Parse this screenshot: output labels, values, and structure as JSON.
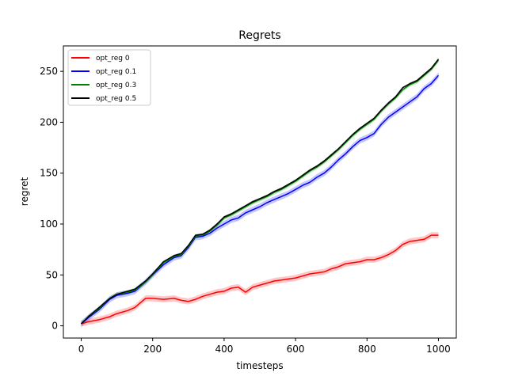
{
  "chart_data": {
    "type": "line",
    "title": "Regrets",
    "xlabel": "timesteps",
    "ylabel": "regret",
    "xlim": [
      -50,
      1050
    ],
    "ylim": [
      -12,
      275
    ],
    "xticks": [
      0,
      200,
      400,
      600,
      800,
      1000
    ],
    "yticks": [
      0,
      50,
      100,
      150,
      200,
      250
    ],
    "grid": false,
    "legend": {
      "position": "top-left"
    },
    "series": [
      {
        "name": "opt_reg 0",
        "color": "#ff0000",
        "band": 3,
        "x": [
          0,
          20,
          50,
          80,
          100,
          130,
          150,
          180,
          200,
          230,
          260,
          280,
          300,
          320,
          340,
          360,
          380,
          400,
          420,
          440,
          460,
          480,
          500,
          520,
          540,
          560,
          580,
          600,
          620,
          640,
          660,
          680,
          700,
          720,
          740,
          760,
          780,
          800,
          820,
          840,
          860,
          880,
          900,
          920,
          940,
          960,
          980,
          1000
        ],
        "y": [
          2,
          4,
          6,
          9,
          12,
          15,
          18,
          27,
          27,
          26,
          27,
          25,
          24,
          26,
          29,
          31,
          33,
          34,
          37,
          38,
          33,
          38,
          40,
          42,
          44,
          45,
          46,
          47,
          49,
          51,
          52,
          53,
          56,
          58,
          61,
          62,
          63,
          65,
          65,
          67,
          70,
          74,
          80,
          83,
          84,
          85,
          89,
          89
        ]
      },
      {
        "name": "opt_reg 0.1",
        "color": "#0000ff",
        "band": 3,
        "x": [
          0,
          20,
          50,
          80,
          100,
          130,
          150,
          180,
          200,
          230,
          260,
          280,
          300,
          320,
          340,
          360,
          380,
          400,
          420,
          440,
          460,
          480,
          500,
          520,
          540,
          560,
          580,
          600,
          620,
          640,
          660,
          680,
          700,
          720,
          740,
          760,
          780,
          800,
          820,
          840,
          860,
          880,
          900,
          920,
          940,
          960,
          980,
          1000
        ],
        "y": [
          2,
          8,
          16,
          26,
          30,
          32,
          34,
          43,
          50,
          60,
          67,
          69,
          77,
          87,
          88,
          91,
          96,
          100,
          104,
          106,
          111,
          114,
          117,
          121,
          124,
          127,
          130,
          134,
          138,
          141,
          146,
          150,
          156,
          163,
          169,
          176,
          182,
          185,
          189,
          198,
          205,
          210,
          215,
          220,
          225,
          233,
          238,
          246
        ]
      },
      {
        "name": "opt_reg 0.3",
        "color": "#008000",
        "band": 2,
        "x": [
          0,
          20,
          50,
          80,
          100,
          130,
          150,
          180,
          200,
          230,
          260,
          280,
          300,
          320,
          340,
          360,
          380,
          400,
          420,
          440,
          460,
          480,
          500,
          520,
          540,
          560,
          580,
          600,
          620,
          640,
          660,
          680,
          700,
          720,
          740,
          760,
          780,
          800,
          820,
          840,
          860,
          880,
          900,
          920,
          940,
          960,
          980,
          1000
        ],
        "y": [
          2,
          9,
          17,
          27,
          31,
          33,
          35,
          43,
          50,
          62,
          68,
          70,
          78,
          88,
          89,
          93,
          99,
          106,
          109,
          113,
          117,
          121,
          124,
          127,
          131,
          134,
          138,
          142,
          147,
          152,
          156,
          161,
          167,
          173,
          180,
          187,
          193,
          198,
          203,
          211,
          218,
          224,
          232,
          237,
          240,
          246,
          252,
          261
        ]
      },
      {
        "name": "opt_reg 0.5",
        "color": "#000000",
        "band": 0,
        "x": [
          0,
          20,
          50,
          80,
          100,
          130,
          150,
          180,
          200,
          230,
          260,
          280,
          300,
          320,
          340,
          360,
          380,
          400,
          420,
          440,
          460,
          480,
          500,
          520,
          540,
          560,
          580,
          600,
          620,
          640,
          660,
          680,
          700,
          720,
          740,
          760,
          780,
          800,
          820,
          840,
          860,
          880,
          900,
          920,
          940,
          960,
          980,
          1000
        ],
        "y": [
          2,
          9,
          18,
          27,
          31,
          34,
          36,
          44,
          51,
          63,
          69,
          71,
          79,
          89,
          90,
          94,
          100,
          107,
          110,
          114,
          118,
          122,
          125,
          128,
          132,
          135,
          139,
          143,
          148,
          153,
          157,
          162,
          168,
          174,
          181,
          188,
          194,
          199,
          204,
          212,
          219,
          225,
          234,
          238,
          241,
          247,
          253,
          262
        ]
      }
    ]
  }
}
